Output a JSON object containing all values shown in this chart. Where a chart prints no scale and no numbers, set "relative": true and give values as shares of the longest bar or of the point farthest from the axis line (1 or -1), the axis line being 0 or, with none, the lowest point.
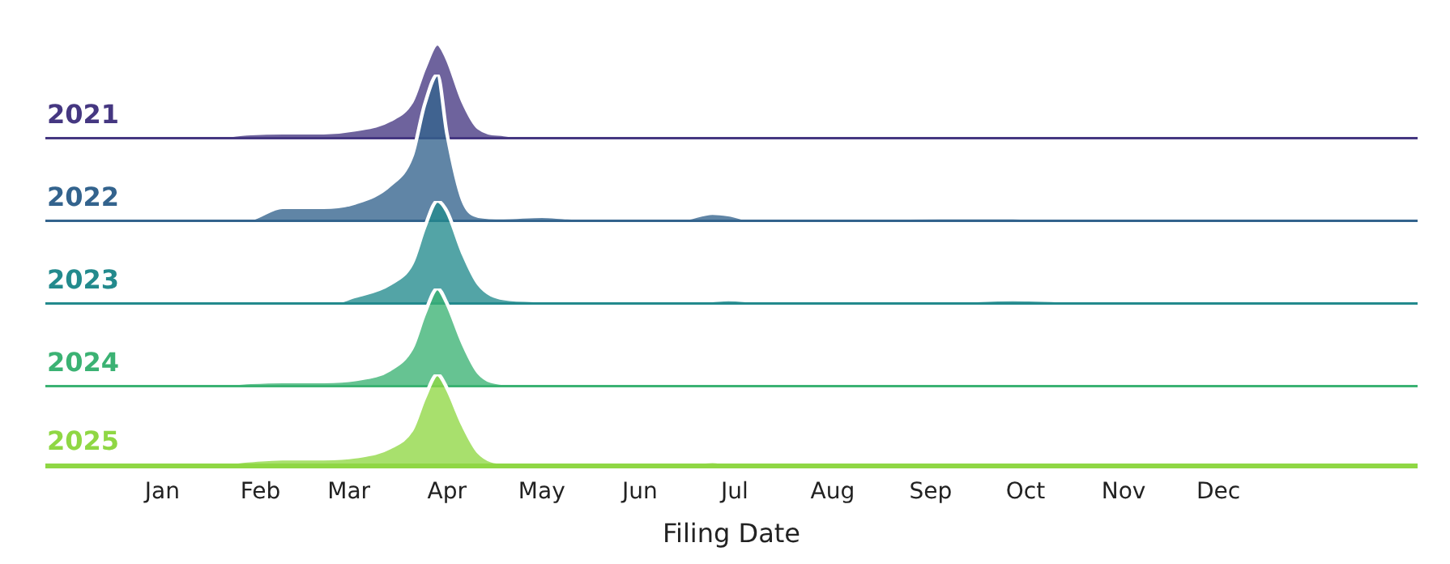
{
  "chart_data": [
    {
      "type": "area",
      "relative": true,
      "x": [
        "--01-01",
        "--01-16",
        "--01-29",
        "--02-08",
        "--02-21",
        "--03-03",
        "--03-14",
        "--03-21",
        "--03-25",
        "--03-29",
        "--04-01",
        "--04-06",
        "--04-11",
        "--04-19",
        "--05-01",
        "--05-09",
        "--05-30",
        "--06-14",
        "--06-24",
        "--06-29",
        "--07-10",
        "--08-04",
        "--09-04",
        "--09-27",
        "--10-20",
        "--11-15",
        "--12-08",
        "--12-26",
        "--12-31"
      ],
      "xlim": [
        "2000-11-25",
        "2002-02-02"
      ],
      "xticks": [
        {
          "value": "--01-01",
          "label": null
        },
        {
          "value": "--02-01",
          "label": null
        },
        {
          "value": "--03-01",
          "label": null
        },
        {
          "value": "--04-01",
          "label": null
        },
        {
          "value": "--05-01",
          "label": null
        },
        {
          "value": "--06-01",
          "label": null
        },
        {
          "value": "--07-01",
          "label": null
        },
        {
          "value": "--08-01",
          "label": null
        },
        {
          "value": "--09-01",
          "label": null
        },
        {
          "value": "--10-01",
          "label": null
        },
        {
          "value": "--11-01",
          "label": null
        },
        {
          "value": "--12-01",
          "label": null
        }
      ],
      "tick_labels": false,
      "series": [
        {
          "name": "2021",
          "color": "#453781",
          "values": [
            0,
            0.02,
            0.06,
            0.07,
            0.07,
            0.1,
            0.2,
            0.4,
            0.75,
            1,
            0.85,
            0.4,
            0.12,
            0.05,
            0.02,
            0,
            0,
            0,
            0,
            0,
            0.03,
            0.03,
            0.02,
            0.04,
            0.02,
            0,
            0.02,
            0,
            0
          ]
        }
      ]
    },
    {
      "type": "area",
      "relative": true,
      "x": [
        "--01-01",
        "--01-16",
        "--01-29",
        "--02-08",
        "--02-21",
        "--03-03",
        "--03-14",
        "--03-21",
        "--03-25",
        "--03-29",
        "--04-01",
        "--04-06",
        "--04-11",
        "--04-19",
        "--05-01",
        "--05-09",
        "--05-30",
        "--06-14",
        "--06-24",
        "--06-29",
        "--07-10",
        "--08-04",
        "--09-04",
        "--09-27",
        "--10-20",
        "--11-15",
        "--12-08",
        "--12-26",
        "--12-31"
      ],
      "xlim": [
        "2000-11-25",
        "2002-02-02"
      ],
      "xticks": [
        {
          "value": "--01-01",
          "label": null
        },
        {
          "value": "--02-01",
          "label": null
        },
        {
          "value": "--03-01",
          "label": null
        },
        {
          "value": "--04-01",
          "label": null
        },
        {
          "value": "--05-01",
          "label": null
        },
        {
          "value": "--06-01",
          "label": null
        },
        {
          "value": "--07-01",
          "label": null
        },
        {
          "value": "--08-01",
          "label": null
        },
        {
          "value": "--09-01",
          "label": null
        },
        {
          "value": "--10-01",
          "label": null
        },
        {
          "value": "--11-01",
          "label": null
        },
        {
          "value": "--12-01",
          "label": null
        }
      ],
      "tick_labels": false,
      "series": [
        {
          "name": "2022",
          "color": "#33638d",
          "values": [
            0,
            0,
            0.02,
            0.1,
            0.1,
            0.13,
            0.25,
            0.45,
            0.8,
            1,
            0.6,
            0.15,
            0.04,
            0.03,
            0.04,
            0.03,
            0.02,
            0.02,
            0.06,
            0.05,
            0,
            0.02,
            0.03,
            0.03,
            0,
            0,
            0,
            0,
            0
          ]
        }
      ]
    },
    {
      "type": "area",
      "relative": true,
      "x": [
        "--01-01",
        "--01-16",
        "--01-29",
        "--02-08",
        "--02-21",
        "--03-03",
        "--03-14",
        "--03-21",
        "--03-25",
        "--03-29",
        "--04-01",
        "--04-06",
        "--04-11",
        "--04-19",
        "--05-01",
        "--05-09",
        "--05-30",
        "--06-14",
        "--06-24",
        "--06-29",
        "--07-10",
        "--08-04",
        "--09-04",
        "--09-27",
        "--10-20",
        "--11-15",
        "--12-08",
        "--12-26",
        "--12-31"
      ],
      "xlim": [
        "2000-11-25",
        "2002-02-02"
      ],
      "xticks": [
        {
          "value": "--01-01",
          "label": null
        },
        {
          "value": "--02-01",
          "label": null
        },
        {
          "value": "--03-01",
          "label": null
        },
        {
          "value": "--04-01",
          "label": null
        },
        {
          "value": "--05-01",
          "label": null
        },
        {
          "value": "--06-01",
          "label": null
        },
        {
          "value": "--07-01",
          "label": null
        },
        {
          "value": "--08-01",
          "label": null
        },
        {
          "value": "--09-01",
          "label": null
        },
        {
          "value": "--10-01",
          "label": null
        },
        {
          "value": "--11-01",
          "label": null
        },
        {
          "value": "--12-01",
          "label": null
        }
      ],
      "tick_labels": false,
      "series": [
        {
          "name": "2023",
          "color": "#238a8d",
          "values": [
            0,
            0,
            0,
            0,
            0,
            0.08,
            0.2,
            0.4,
            0.75,
            1,
            0.9,
            0.5,
            0.2,
            0.06,
            0.04,
            0.03,
            0.02,
            0.02,
            0.04,
            0.05,
            0.03,
            0.03,
            0.03,
            0.05,
            0.03,
            0.01,
            0.02,
            0,
            0
          ]
        }
      ]
    },
    {
      "type": "area",
      "relative": true,
      "x": [
        "--01-01",
        "--01-16",
        "--01-29",
        "--02-08",
        "--02-21",
        "--03-03",
        "--03-14",
        "--03-21",
        "--03-25",
        "--03-29",
        "--04-01",
        "--04-06",
        "--04-11",
        "--04-19",
        "--05-01",
        "--05-09",
        "--05-30",
        "--06-14",
        "--06-24",
        "--06-29",
        "--07-10",
        "--08-04",
        "--09-04",
        "--09-27",
        "--10-20",
        "--11-15",
        "--12-08",
        "--12-26",
        "--12-31"
      ],
      "xlim": [
        "2000-11-25",
        "2002-02-02"
      ],
      "xticks": [
        {
          "value": "--01-01",
          "label": null
        },
        {
          "value": "--02-01",
          "label": null
        },
        {
          "value": "--03-01",
          "label": null
        },
        {
          "value": "--04-01",
          "label": null
        },
        {
          "value": "--05-01",
          "label": null
        },
        {
          "value": "--06-01",
          "label": null
        },
        {
          "value": "--07-01",
          "label": null
        },
        {
          "value": "--08-01",
          "label": null
        },
        {
          "value": "--09-01",
          "label": null
        },
        {
          "value": "--10-01",
          "label": null
        },
        {
          "value": "--11-01",
          "label": null
        },
        {
          "value": "--12-01",
          "label": null
        }
      ],
      "tick_labels": false,
      "series": [
        {
          "name": "2024",
          "color": "#3bb273",
          "values": [
            0,
            0.02,
            0.05,
            0.06,
            0.06,
            0.08,
            0.18,
            0.4,
            0.75,
            1,
            0.85,
            0.45,
            0.15,
            0.04,
            0.03,
            0.02,
            0.01,
            0.02,
            0.04,
            0.04,
            0.02,
            0.02,
            0.02,
            0.04,
            0.02,
            0.02,
            0.02,
            0,
            0
          ]
        }
      ]
    },
    {
      "type": "area",
      "relative": true,
      "x": [
        "--01-01",
        "--01-16",
        "--01-29",
        "--02-08",
        "--02-21",
        "--03-03",
        "--03-14",
        "--03-21",
        "--03-25",
        "--03-29",
        "--04-01",
        "--04-06",
        "--04-11",
        "--04-19",
        "--05-01",
        "--05-09",
        "--05-30",
        "--06-14",
        "--06-24",
        "--06-29",
        "--07-10",
        "--08-04",
        "--09-04",
        "--09-27",
        "--10-20",
        "--11-15",
        "--12-08",
        "--12-26",
        "--12-31"
      ],
      "xlim": [
        "2000-11-25",
        "2002-02-02"
      ],
      "xlabel": "Filing Date",
      "xticks": [
        {
          "value": "--01-01",
          "label": "Jan"
        },
        {
          "value": "--02-01",
          "label": "Feb"
        },
        {
          "value": "--03-01",
          "label": "Mar"
        },
        {
          "value": "--04-01",
          "label": "Apr"
        },
        {
          "value": "--05-01",
          "label": "May"
        },
        {
          "value": "--06-01",
          "label": "Jun"
        },
        {
          "value": "--07-01",
          "label": "Jul"
        },
        {
          "value": "--08-01",
          "label": "Aug"
        },
        {
          "value": "--09-01",
          "label": "Sep"
        },
        {
          "value": "--10-01",
          "label": "Oct"
        },
        {
          "value": "--11-01",
          "label": "Nov"
        },
        {
          "value": "--12-01",
          "label": "Dec"
        }
      ],
      "tick_labels": "x",
      "series": [
        {
          "name": "2025",
          "color": "#8fd744",
          "values": [
            0,
            0.02,
            0.06,
            0.08,
            0.08,
            0.1,
            0.2,
            0.4,
            0.75,
            1,
            0.85,
            0.45,
            0.15,
            0.04,
            0.04,
            0.02,
            0.01,
            0.02,
            0.05,
            0.03,
            0.02,
            0.02,
            0.02,
            0.04,
            0.02,
            0.02,
            0.02,
            0,
            0
          ]
        }
      ]
    }
  ]
}
